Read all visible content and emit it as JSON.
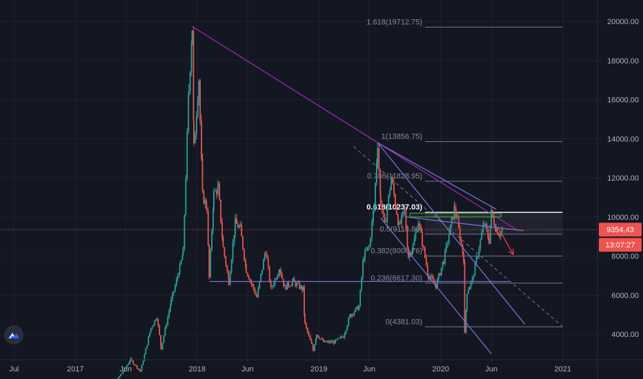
{
  "chart_data": {
    "type": "line",
    "price_scale": {
      "ticks": [
        "20000.00",
        "18000.00",
        "16000.00",
        "14000.00",
        "12000.00",
        "10000.00",
        "8000.00",
        "6000.00",
        "4000.00"
      ],
      "tick_values": [
        20000,
        18000,
        16000,
        14000,
        12000,
        10000,
        8000,
        6000,
        4000
      ],
      "ylim": [
        2700,
        21100
      ]
    },
    "time_scale": {
      "ticks": [
        "Jul",
        "2017",
        "Jun",
        "2018",
        "Jun",
        "2019",
        "Jun",
        "2020",
        "Jun",
        "2021"
      ],
      "tick_dates": [
        "2016-07-01",
        "2017-01-01",
        "2017-06-01",
        "2018-01-01",
        "2018-06-01",
        "2019-01-01",
        "2019-06-01",
        "2020-01-01",
        "2020-06-01",
        "2021-01-01"
      ],
      "xlim": [
        "2016-05-20",
        "2021-04-15"
      ]
    },
    "series": [
      {
        "color": "#26a69a",
        "down_color": "#ef5350",
        "points": [
          [
            "2017-03-10",
            1100
          ],
          [
            "2017-04-15",
            1200
          ],
          [
            "2017-05-20",
            2000
          ],
          [
            "2017-06-15",
            2700
          ],
          [
            "2017-07-15",
            2100
          ],
          [
            "2017-08-15",
            4300
          ],
          [
            "2017-09-02",
            4900
          ],
          [
            "2017-09-15",
            3300
          ],
          [
            "2017-10-15",
            5700
          ],
          [
            "2017-11-10",
            7400
          ],
          [
            "2017-11-20",
            8200
          ],
          [
            "2017-12-07",
            16500
          ],
          [
            "2017-12-17",
            19700
          ],
          [
            "2017-12-22",
            13500
          ],
          [
            "2018-01-06",
            17100
          ],
          [
            "2018-01-17",
            11100
          ],
          [
            "2018-01-30",
            10500
          ],
          [
            "2018-02-06",
            6900
          ],
          [
            "2018-02-20",
            11200
          ],
          [
            "2018-03-05",
            11500
          ],
          [
            "2018-03-20",
            8400
          ],
          [
            "2018-04-06",
            6700
          ],
          [
            "2018-04-25",
            9700
          ],
          [
            "2018-05-10",
            9400
          ],
          [
            "2018-05-28",
            7300
          ],
          [
            "2018-06-15",
            6500
          ],
          [
            "2018-06-29",
            5900
          ],
          [
            "2018-07-25",
            8300
          ],
          [
            "2018-08-10",
            6300
          ],
          [
            "2018-09-05",
            7400
          ],
          [
            "2018-09-20",
            6400
          ],
          [
            "2018-10-15",
            6700
          ],
          [
            "2018-11-14",
            6300
          ],
          [
            "2018-11-20",
            4500
          ],
          [
            "2018-12-15",
            3200
          ],
          [
            "2018-12-25",
            4000
          ],
          [
            "2019-01-15",
            3600
          ],
          [
            "2019-02-15",
            3600
          ],
          [
            "2019-03-15",
            3900
          ],
          [
            "2019-04-05",
            5000
          ],
          [
            "2019-05-01",
            5400
          ],
          [
            "2019-05-15",
            8000
          ],
          [
            "2019-06-01",
            8500
          ],
          [
            "2019-06-15",
            10500
          ],
          [
            "2019-06-26",
            13800
          ],
          [
            "2019-07-05",
            10800
          ],
          [
            "2019-07-17",
            9500
          ],
          [
            "2019-08-06",
            12000
          ],
          [
            "2019-08-29",
            9500
          ],
          [
            "2019-09-15",
            10300
          ],
          [
            "2019-09-26",
            8000
          ],
          [
            "2019-10-10",
            8500
          ],
          [
            "2019-10-26",
            9800
          ],
          [
            "2019-11-25",
            7000
          ],
          [
            "2019-12-18",
            6500
          ],
          [
            "2020-01-10",
            7800
          ],
          [
            "2020-02-12",
            10500
          ],
          [
            "2020-03-10",
            7900
          ],
          [
            "2020-03-13",
            4000
          ],
          [
            "2020-03-20",
            6200
          ],
          [
            "2020-04-05",
            6800
          ],
          [
            "2020-04-29",
            8800
          ],
          [
            "2020-05-10",
            9700
          ],
          [
            "2020-05-25",
            8800
          ],
          [
            "2020-06-01",
            10200
          ],
          [
            "2020-06-15",
            9400
          ],
          [
            "2020-06-25",
            9150
          ],
          [
            "2020-07-05",
            9354
          ]
        ]
      }
    ],
    "current_price": {
      "label": "9354.43",
      "value": 9354.43
    },
    "countdown": {
      "label": "13:07:27"
    },
    "fib_levels": [
      {
        "label": "1.618(19712.75)",
        "value": 19712.75
      },
      {
        "label": "1(13856.75)",
        "value": 13856.75
      },
      {
        "label": "0.786(11828.95)",
        "value": 11828.95
      },
      {
        "label": "0.618(10237.03)",
        "value": 10237.03
      },
      {
        "label": "0.5(9118.89)",
        "value": 9118.89
      },
      {
        "label": "0.382(8000.76)",
        "value": 8000.76
      },
      {
        "label": "0.236(6617.30)",
        "value": 6617.3
      },
      {
        "label": "0(4381.03)",
        "value": 4381.03
      }
    ],
    "fib_start": "2019-11-15",
    "fib_end": "2020-12-31",
    "fib_highlight_index": 3,
    "drawings": [
      {
        "kind": "trendline",
        "color": "#9c27b0",
        "from": [
          "2017-12-17",
          19750
        ],
        "to": [
          "2020-08-20",
          9300
        ]
      },
      {
        "kind": "trendline",
        "color": "#7b6fd6",
        "from": [
          "2019-06-26",
          13800
        ],
        "to": [
          "2020-09-10",
          4500
        ]
      },
      {
        "kind": "trendline",
        "color": "#7b6fd6",
        "from": [
          "2019-06-26",
          13800
        ],
        "to": [
          "2020-06-15",
          10400
        ]
      },
      {
        "kind": "trendline",
        "color": "#7b6fd6",
        "from": [
          "2019-07-05",
          9950
        ],
        "to": [
          "2020-06-01",
          3000
        ]
      },
      {
        "kind": "trendline",
        "color": "#7b6fd6",
        "from": [
          "2019-09-20",
          10000
        ],
        "to": [
          "2020-09-05",
          9300
        ]
      },
      {
        "kind": "trendline",
        "color": "#7b6fd6",
        "from": [
          "2018-02-06",
          6700
        ],
        "to": [
          "2020-07-25",
          6700
        ]
      },
      {
        "kind": "dashed",
        "color": "#787b86",
        "from": [
          "2019-04-15",
          13600
        ],
        "to": [
          "2020-12-31",
          4400
        ]
      },
      {
        "kind": "box",
        "color": "#4caf50",
        "from": [
          "2019-10-01",
          10200
        ],
        "to": [
          "2020-06-30",
          10000
        ]
      },
      {
        "kind": "arrow",
        "color": "#f23645",
        "from": [
          "2020-06-20",
          9500
        ],
        "to": [
          "2020-08-05",
          8100
        ]
      }
    ],
    "grid": true,
    "legend": "none"
  }
}
